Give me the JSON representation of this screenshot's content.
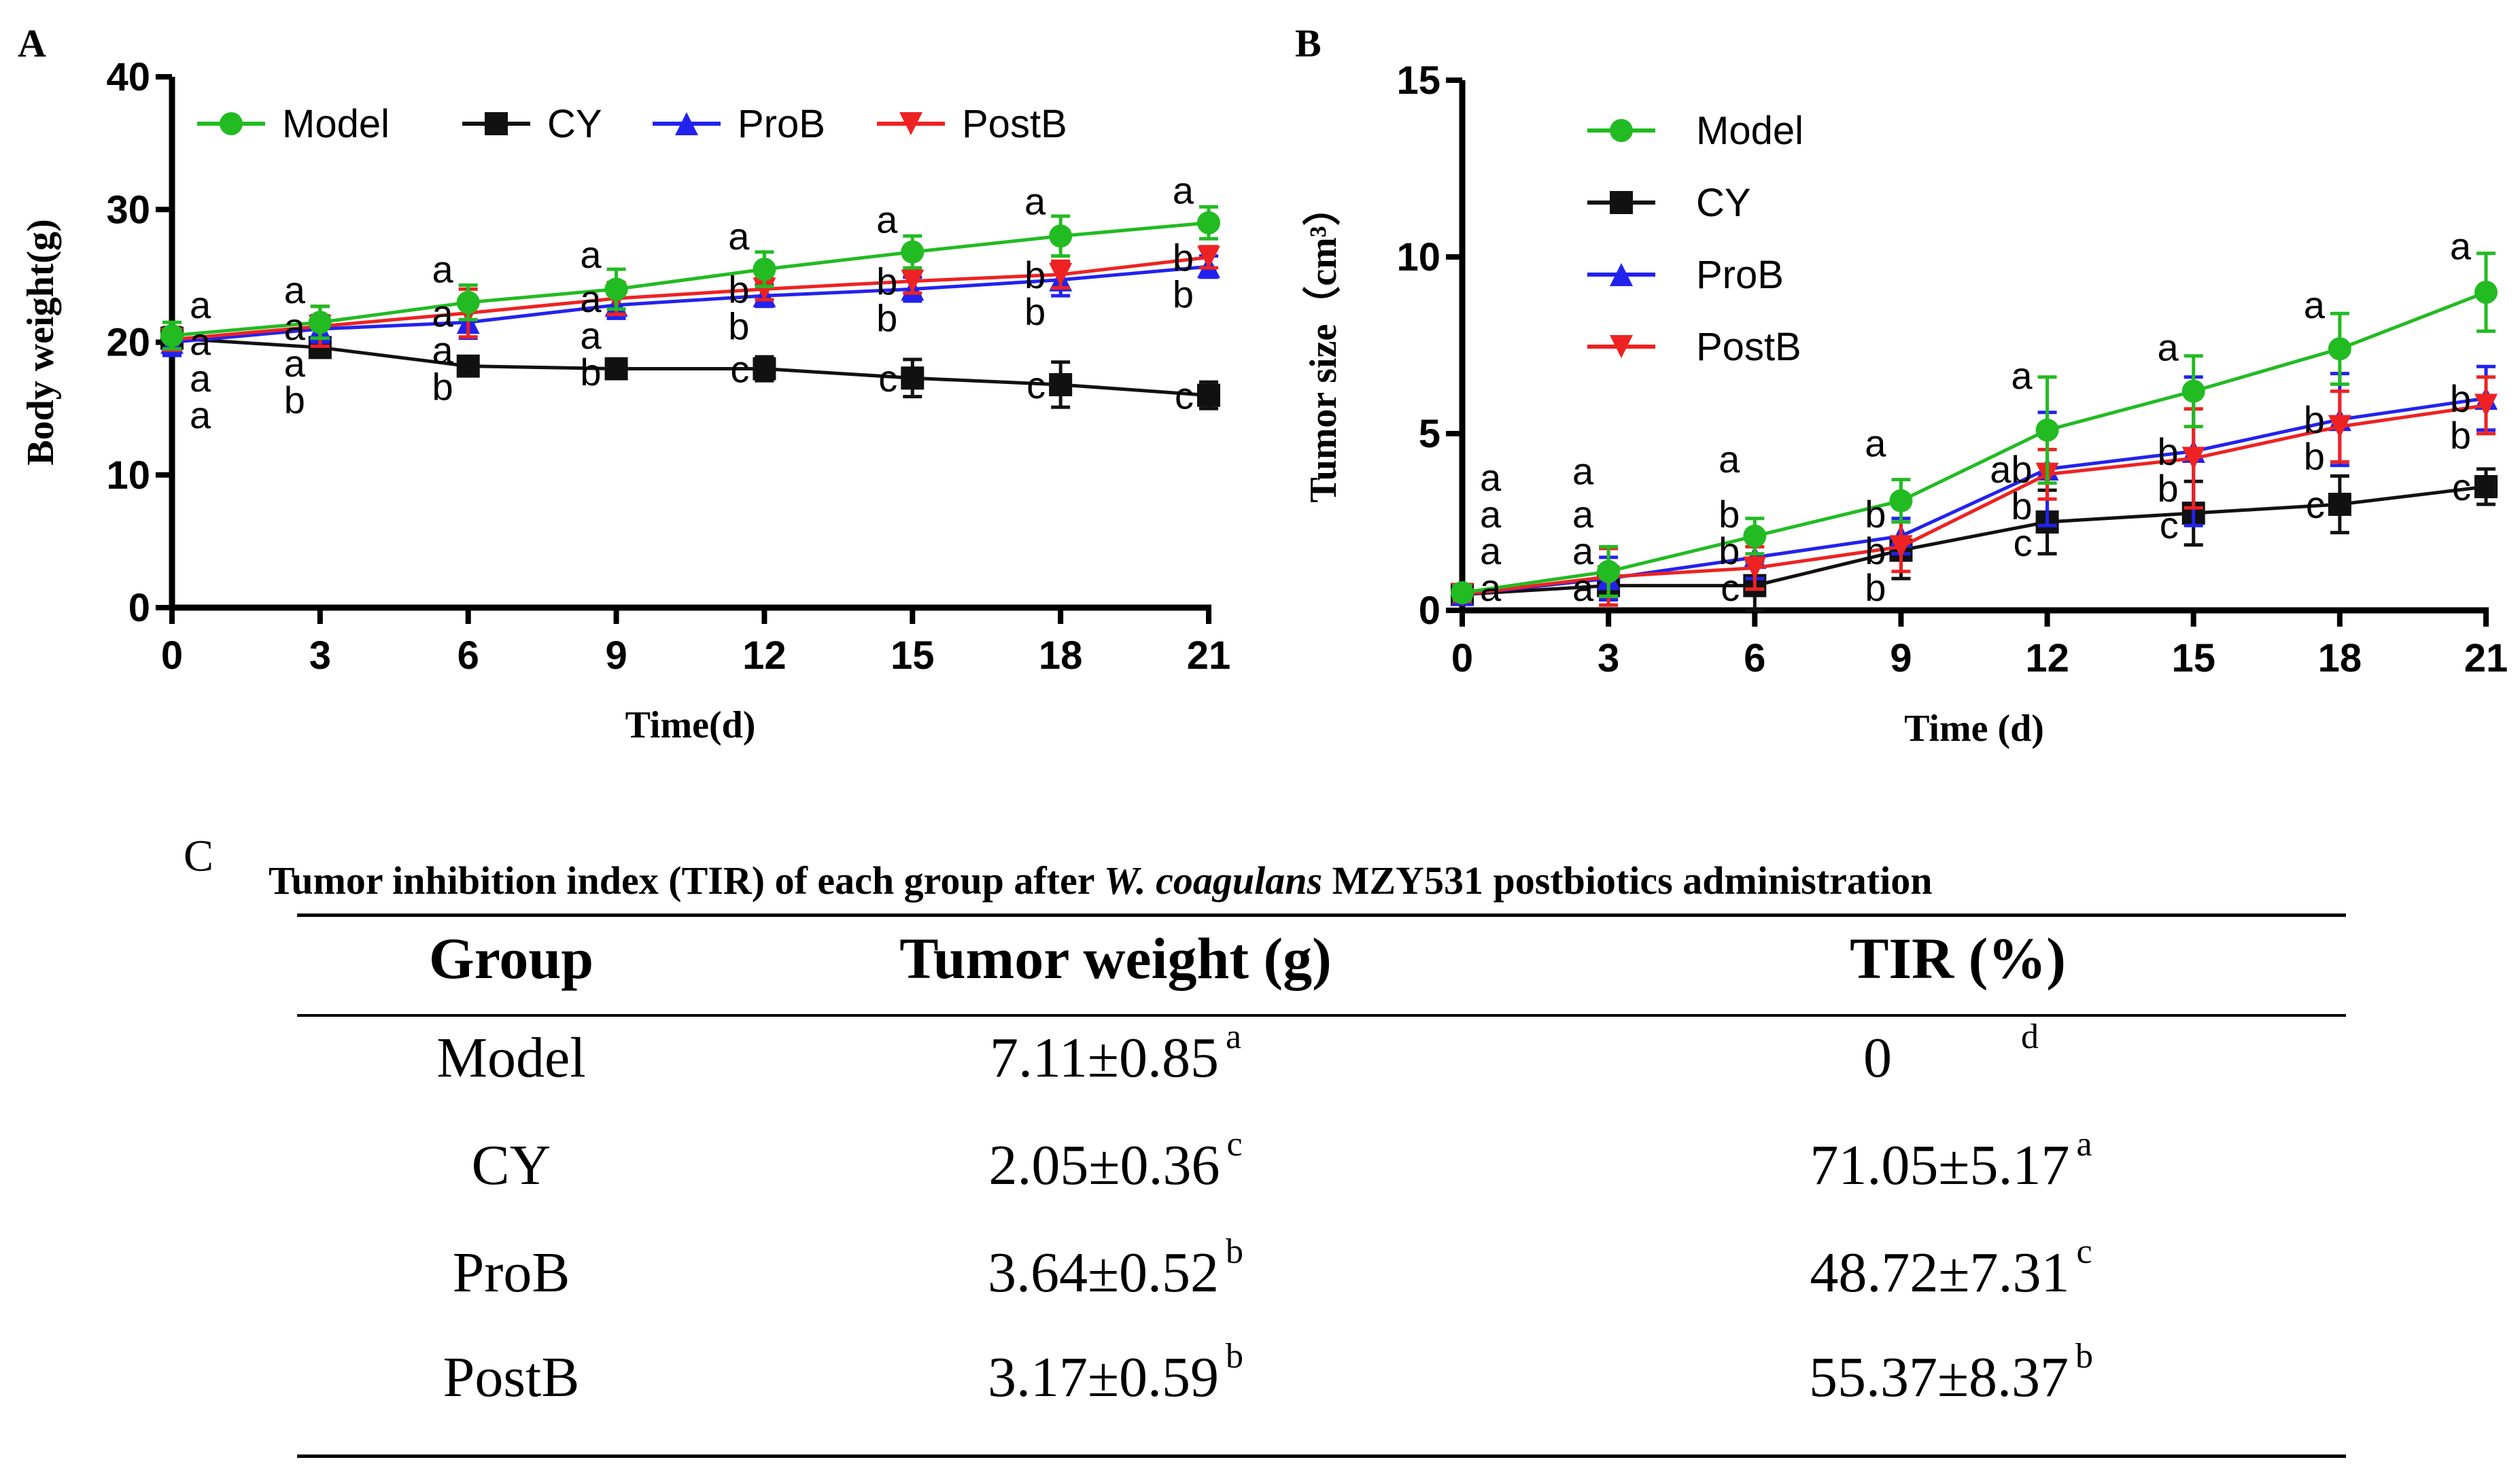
{
  "chart_data": [
    {
      "panel": "A",
      "type": "line",
      "xlabel": "Time(d)",
      "ylabel": "Body weight(g)",
      "x": [
        0,
        3,
        6,
        9,
        12,
        15,
        18,
        21
      ],
      "xticks": [
        "0",
        "3",
        "6",
        "9",
        "12",
        "15",
        "18",
        "21"
      ],
      "yticks": [
        "0",
        "10",
        "20",
        "30",
        "40"
      ],
      "xlim": [
        0,
        21
      ],
      "ylim": [
        0,
        40
      ],
      "legend": "top-horizontal",
      "series": [
        {
          "name": "Model",
          "color": "#22bb22",
          "marker": "circle",
          "values": [
            20.5,
            21.5,
            23.0,
            24.0,
            25.5,
            26.8,
            28.0,
            29.0
          ],
          "errors": [
            1.0,
            1.2,
            1.3,
            1.5,
            1.3,
            1.2,
            1.5,
            1.2
          ],
          "letters": [
            "a",
            "a",
            "a",
            "a",
            "a",
            "a",
            "a",
            "a"
          ]
        },
        {
          "name": "CY",
          "color": "#111111",
          "marker": "square",
          "values": [
            20.3,
            19.6,
            18.2,
            18.0,
            18.0,
            17.3,
            16.8,
            16.0
          ],
          "errors": [
            0.8,
            0.6,
            0.6,
            0.7,
            0.9,
            1.4,
            1.7,
            1.0
          ],
          "letters": [
            "a",
            "b",
            "b",
            "b",
            "c",
            "c",
            "c",
            "c"
          ]
        },
        {
          "name": "ProB",
          "color": "#2222ee",
          "marker": "triangle-up",
          "values": [
            20.0,
            21.0,
            21.5,
            22.8,
            23.5,
            24.0,
            24.7,
            25.7
          ],
          "errors": [
            1.0,
            1.0,
            1.2,
            1.0,
            0.8,
            0.9,
            1.2,
            0.8
          ],
          "letters": [
            "a",
            "a",
            "a",
            "a",
            "b",
            "b",
            "b",
            "b"
          ]
        },
        {
          "name": "PostB",
          "color": "#ee2222",
          "marker": "triangle-down",
          "values": [
            20.2,
            21.2,
            22.2,
            23.3,
            24.0,
            24.6,
            25.1,
            26.4
          ],
          "errors": [
            0.8,
            1.5,
            1.8,
            1.2,
            0.8,
            0.9,
            1.0,
            0.8
          ],
          "letters": [
            "a",
            "a",
            "a",
            "a",
            "b",
            "b",
            "b",
            "b"
          ]
        }
      ]
    },
    {
      "panel": "B",
      "type": "line",
      "xlabel": "Time (d)",
      "ylabel": "Tumor size（cm³）",
      "x": [
        0,
        3,
        6,
        9,
        12,
        15,
        18,
        21
      ],
      "xticks": [
        "0",
        "3",
        "6",
        "9",
        "12",
        "15",
        "18",
        "21"
      ],
      "yticks": [
        "0",
        "5",
        "10",
        "15"
      ],
      "xlim": [
        0,
        21
      ],
      "ylim": [
        0,
        15
      ],
      "legend": "top-left-vertical",
      "series": [
        {
          "name": "Model",
          "color": "#22bb22",
          "marker": "circle",
          "values": [
            0.5,
            1.1,
            2.1,
            3.1,
            5.1,
            6.2,
            7.4,
            9.0
          ],
          "errors": [
            0.2,
            0.7,
            0.5,
            0.6,
            1.5,
            1.0,
            1.0,
            1.1
          ],
          "letters": [
            "a",
            "a",
            "a",
            "a",
            "a",
            "a",
            "a",
            "a"
          ]
        },
        {
          "name": "CY",
          "color": "#111111",
          "marker": "square",
          "values": [
            0.45,
            0.7,
            0.7,
            1.7,
            2.5,
            2.75,
            3.0,
            3.5
          ],
          "errors": [
            0.2,
            0.4,
            0.7,
            0.8,
            0.9,
            0.9,
            0.8,
            0.5
          ],
          "letters": [
            "a",
            "a",
            "c",
            "b",
            "c",
            "c",
            "c",
            "c"
          ]
        },
        {
          "name": "ProB",
          "color": "#2222ee",
          "marker": "triangle-up",
          "values": [
            0.45,
            0.9,
            1.5,
            2.1,
            4.0,
            4.5,
            5.4,
            6.0
          ],
          "errors": [
            0.2,
            0.6,
            0.6,
            0.5,
            1.6,
            2.1,
            1.3,
            0.9
          ],
          "letters": [
            "a",
            "a",
            "b",
            "b",
            "ab",
            "b",
            "b",
            "b"
          ]
        },
        {
          "name": "PostB",
          "color": "#ee2222",
          "marker": "triangle-down",
          "values": [
            0.45,
            0.95,
            1.2,
            1.8,
            3.85,
            4.3,
            5.2,
            5.8
          ],
          "errors": [
            0.2,
            0.8,
            0.6,
            0.7,
            0.7,
            1.4,
            1.0,
            0.8
          ],
          "letters": [
            "a",
            "a",
            "b",
            "b",
            "b",
            "b",
            "b",
            "b"
          ]
        }
      ]
    }
  ],
  "panels": {
    "a": "A",
    "b": "B",
    "c": "C"
  },
  "table": {
    "title_pre": "Tumor inhibition index (TIR) of each group after ",
    "title_italic": "W. coagulans",
    "title_post": " MZY531 postbiotics  administration",
    "headers": [
      "Group",
      "Tumor weight (g)",
      "TIR (%)"
    ],
    "rows": [
      {
        "group": "Model",
        "weight": "7.11±0.85",
        "weight_sig": "a",
        "tir": "0",
        "tir_sig": "d"
      },
      {
        "group": "CY",
        "weight": "2.05±0.36",
        "weight_sig": "c",
        "tir": "71.05±5.17",
        "tir_sig": "a"
      },
      {
        "group": "ProB",
        "weight": "3.64±0.52",
        "weight_sig": "b",
        "tir": "48.72±7.31",
        "tir_sig": "c"
      },
      {
        "group": "PostB",
        "weight": "3.17±0.59",
        "weight_sig": "b",
        "tir": "55.37±8.37",
        "tir_sig": "b"
      }
    ]
  }
}
